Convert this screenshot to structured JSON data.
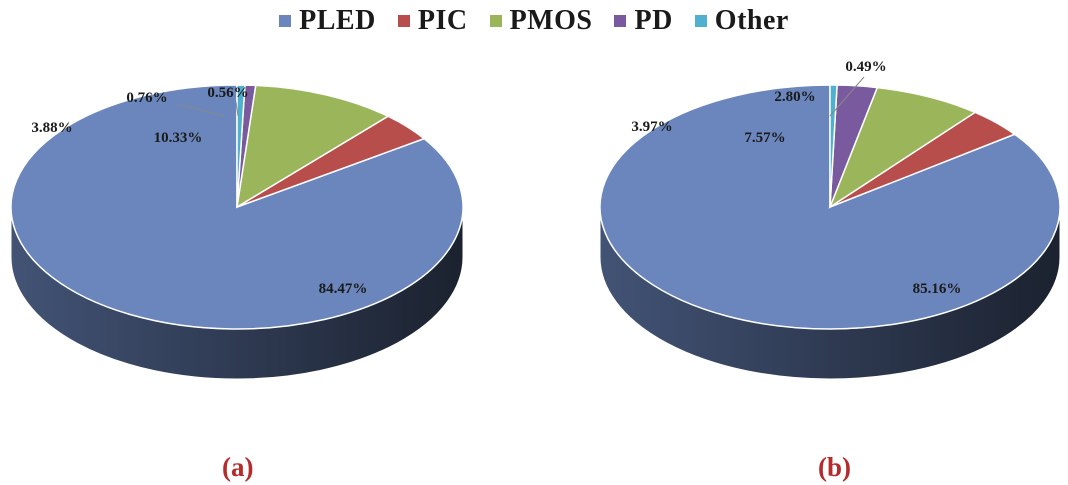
{
  "legend": [
    {
      "name": "PLED",
      "color": "#6a86bd"
    },
    {
      "name": "PIC",
      "color": "#b84e4c"
    },
    {
      "name": "PMOS",
      "color": "#9bb65a"
    },
    {
      "name": "PD",
      "color": "#7a5a9e"
    },
    {
      "name": "Other",
      "color": "#4fb0cf"
    }
  ],
  "panels": {
    "a": "(a)",
    "b": "(b)"
  },
  "chart_data": [
    {
      "type": "pie",
      "style": "3d",
      "panel": "(a)",
      "categories": [
        "PLED",
        "PIC",
        "PMOS",
        "PD",
        "Other"
      ],
      "values": [
        84.47,
        3.88,
        10.33,
        0.76,
        0.56
      ],
      "labels": [
        "84.47%",
        "3.88%",
        "10.33%",
        "0.76%",
        "0.56%"
      ],
      "legend_position": "top"
    },
    {
      "type": "pie",
      "style": "3d",
      "panel": "(b)",
      "categories": [
        "PLED",
        "PIC",
        "PMOS",
        "PD",
        "Other"
      ],
      "values": [
        85.16,
        3.97,
        7.57,
        2.8,
        0.49
      ],
      "labels": [
        "85.16%",
        "3.97%",
        "7.57%",
        "2.80%",
        "0.49%"
      ],
      "legend_position": "top"
    }
  ]
}
